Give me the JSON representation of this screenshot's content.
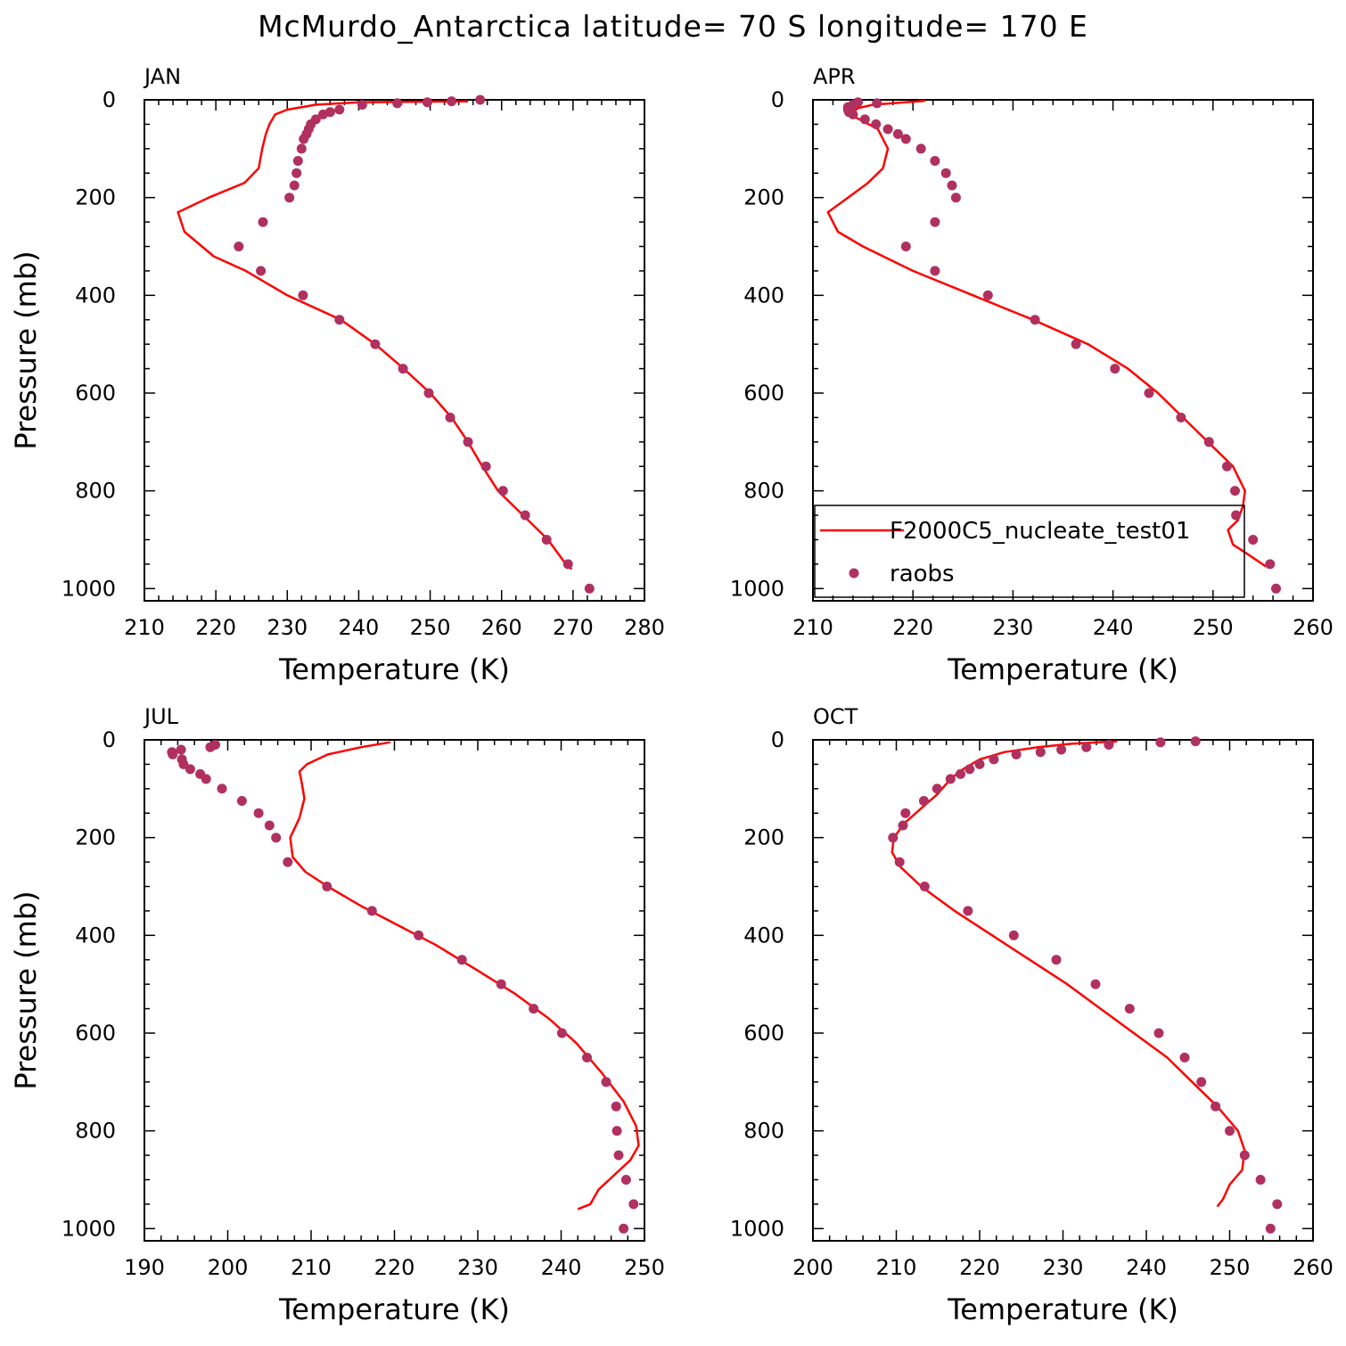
{
  "figure": {
    "title": "McMurdo_Antarctica  latitude= 70 S longitude= 170 E"
  },
  "colors": {
    "model": "#ff0000",
    "obs": "#b03060",
    "axis": "#000000"
  },
  "legend": {
    "panel_index": 1,
    "placement": "lower-middle",
    "entries": [
      {
        "label": "F2000C5_nucleate_test01",
        "style": "line",
        "color": "#ff0000"
      },
      {
        "label": "raobs",
        "style": "marker",
        "color": "#b03060"
      }
    ]
  },
  "chart_data": [
    {
      "type": "line",
      "panel": "JAN",
      "xlabel": "Temperature (K)",
      "ylabel": "Pressure (mb)",
      "xlim": [
        210,
        280
      ],
      "ylim": [
        1025,
        0
      ],
      "xticks": [
        210,
        220,
        230,
        240,
        250,
        260,
        270,
        280
      ],
      "yticks": [
        0,
        200,
        400,
        600,
        800,
        1000
      ],
      "series": [
        {
          "name": "F2000C5_nucleate_test01",
          "kind": "line",
          "points": [
            [
              255.3,
              3
            ],
            [
              240,
              5
            ],
            [
              234,
              10
            ],
            [
              230,
              20
            ],
            [
              228.3,
              30
            ],
            [
              227.5,
              50
            ],
            [
              227,
              70
            ],
            [
              226.5,
              100
            ],
            [
              226,
              140
            ],
            [
              224,
              170
            ],
            [
              219,
              200
            ],
            [
              214.7,
              230
            ],
            [
              215.6,
              270
            ],
            [
              219.7,
              320
            ],
            [
              224.2,
              350
            ],
            [
              230,
              400
            ],
            [
              237.5,
              450
            ],
            [
              242.3,
              500
            ],
            [
              246.3,
              550
            ],
            [
              250,
              600
            ],
            [
              253,
              650
            ],
            [
              255.3,
              700
            ],
            [
              257.3,
              750
            ],
            [
              259.5,
              800
            ],
            [
              263,
              850
            ],
            [
              266.5,
              900
            ],
            [
              269,
              950
            ],
            [
              269.8,
              960
            ]
          ]
        },
        {
          "name": "raobs",
          "kind": "marker",
          "points": [
            [
              257,
              0
            ],
            [
              253,
              3
            ],
            [
              249.6,
              5
            ],
            [
              245.4,
              7
            ],
            [
              240.5,
              10
            ],
            [
              237.3,
              20
            ],
            [
              236,
              25
            ],
            [
              235,
              30
            ],
            [
              234,
              40
            ],
            [
              233.3,
              50
            ],
            [
              233,
              60
            ],
            [
              232.7,
              70
            ],
            [
              232.3,
              80
            ],
            [
              232,
              100
            ],
            [
              231.5,
              125
            ],
            [
              231.3,
              150
            ],
            [
              231,
              175
            ],
            [
              230.3,
              200
            ],
            [
              226.6,
              250
            ],
            [
              223.2,
              300
            ],
            [
              226.3,
              350
            ],
            [
              232.2,
              400
            ],
            [
              237.3,
              450
            ],
            [
              242.3,
              500
            ],
            [
              246.2,
              550
            ],
            [
              249.8,
              600
            ],
            [
              252.8,
              650
            ],
            [
              255.3,
              700
            ],
            [
              257.8,
              750
            ],
            [
              260.2,
              800
            ],
            [
              263.3,
              850
            ],
            [
              266.3,
              900
            ],
            [
              269.3,
              950
            ],
            [
              272.3,
              1000
            ]
          ]
        }
      ]
    },
    {
      "type": "line",
      "panel": "APR",
      "xlabel": "Temperature (K)",
      "ylabel": "",
      "xlim": [
        210,
        260
      ],
      "ylim": [
        1025,
        0
      ],
      "xticks": [
        210,
        220,
        230,
        240,
        250,
        260
      ],
      "yticks": [
        0,
        200,
        400,
        600,
        800,
        1000
      ],
      "series": [
        {
          "name": "F2000C5_nucleate_test01",
          "kind": "line",
          "points": [
            [
              221.2,
              2
            ],
            [
              216,
              10
            ],
            [
              214.5,
              17
            ],
            [
              214,
              25
            ],
            [
              214.2,
              35
            ],
            [
              216.5,
              60
            ],
            [
              217.5,
              100
            ],
            [
              217,
              140
            ],
            [
              215.5,
              170
            ],
            [
              213.5,
              200
            ],
            [
              211.5,
              230
            ],
            [
              212.5,
              270
            ],
            [
              215,
              300
            ],
            [
              220,
              350
            ],
            [
              226,
              400
            ],
            [
              232,
              450
            ],
            [
              237.5,
              500
            ],
            [
              241.5,
              550
            ],
            [
              244.5,
              600
            ],
            [
              247,
              650
            ],
            [
              249.5,
              700
            ],
            [
              252,
              750
            ],
            [
              253.2,
              800
            ],
            [
              253,
              830
            ],
            [
              252.5,
              860
            ],
            [
              251.5,
              880
            ],
            [
              252,
              910
            ],
            [
              253.5,
              930
            ],
            [
              255.3,
              955
            ]
          ]
        },
        {
          "name": "raobs",
          "kind": "marker",
          "points": [
            [
              214.5,
              5
            ],
            [
              216.4,
              7
            ],
            [
              214,
              10
            ],
            [
              213.5,
              15
            ],
            [
              213.5,
              20
            ],
            [
              213.6,
              25
            ],
            [
              214,
              30
            ],
            [
              215.2,
              40
            ],
            [
              216.3,
              50
            ],
            [
              217.5,
              60
            ],
            [
              218.5,
              70
            ],
            [
              219.3,
              80
            ],
            [
              220.8,
              100
            ],
            [
              222.2,
              125
            ],
            [
              223.3,
              150
            ],
            [
              223.9,
              175
            ],
            [
              224.3,
              200
            ],
            [
              222.2,
              250
            ],
            [
              219.3,
              300
            ],
            [
              222.2,
              350
            ],
            [
              227.5,
              400
            ],
            [
              232.2,
              450
            ],
            [
              236.3,
              500
            ],
            [
              240.2,
              550
            ],
            [
              243.6,
              600
            ],
            [
              246.8,
              650
            ],
            [
              249.6,
              700
            ],
            [
              251.4,
              750
            ],
            [
              252.2,
              800
            ],
            [
              252.3,
              850
            ],
            [
              254,
              900
            ],
            [
              255.7,
              950
            ],
            [
              256.3,
              1000
            ]
          ]
        }
      ]
    },
    {
      "type": "line",
      "panel": "JUL",
      "xlabel": "Temperature (K)",
      "ylabel": "Pressure (mb)",
      "xlim": [
        190,
        250
      ],
      "ylim": [
        1025,
        0
      ],
      "xticks": [
        190,
        200,
        210,
        220,
        230,
        240,
        250
      ],
      "yticks": [
        0,
        200,
        400,
        600,
        800,
        1000
      ],
      "series": [
        {
          "name": "F2000C5_nucleate_test01",
          "kind": "line",
          "points": [
            [
              219.5,
              5
            ],
            [
              216,
              15
            ],
            [
              212,
              30
            ],
            [
              209.5,
              50
            ],
            [
              208.6,
              65
            ],
            [
              208.8,
              80
            ],
            [
              209.2,
              120
            ],
            [
              208.6,
              160
            ],
            [
              207.5,
              200
            ],
            [
              207.8,
              240
            ],
            [
              209.3,
              270
            ],
            [
              212,
              300
            ],
            [
              216,
              340
            ],
            [
              220.5,
              380
            ],
            [
              225,
              420
            ],
            [
              229.8,
              470
            ],
            [
              234.5,
              520
            ],
            [
              238.5,
              570
            ],
            [
              241.8,
              620
            ],
            [
              244.8,
              680
            ],
            [
              247.5,
              740
            ],
            [
              249,
              790
            ],
            [
              249.3,
              830
            ],
            [
              248.3,
              860
            ],
            [
              244.5,
              920
            ],
            [
              243.5,
              950
            ],
            [
              242,
              960
            ]
          ]
        },
        {
          "name": "raobs",
          "kind": "marker",
          "points": [
            [
              198.5,
              10
            ],
            [
              197.9,
              15
            ],
            [
              194.4,
              20
            ],
            [
              193.3,
              25
            ],
            [
              193.4,
              30
            ],
            [
              194.5,
              40
            ],
            [
              194.7,
              50
            ],
            [
              195.5,
              60
            ],
            [
              196.7,
              70
            ],
            [
              197.4,
              80
            ],
            [
              199.3,
              100
            ],
            [
              201.7,
              125
            ],
            [
              203.7,
              150
            ],
            [
              205,
              175
            ],
            [
              205.8,
              200
            ],
            [
              207.2,
              250
            ],
            [
              211.9,
              300
            ],
            [
              217.3,
              350
            ],
            [
              222.9,
              400
            ],
            [
              228.1,
              450
            ],
            [
              232.8,
              500
            ],
            [
              236.7,
              550
            ],
            [
              240.1,
              600
            ],
            [
              243.1,
              650
            ],
            [
              245.4,
              700
            ],
            [
              246.6,
              750
            ],
            [
              246.7,
              800
            ],
            [
              246.9,
              850
            ],
            [
              247.8,
              900
            ],
            [
              248.7,
              950
            ],
            [
              247.5,
              1000
            ]
          ]
        }
      ]
    },
    {
      "type": "line",
      "panel": "OCT",
      "xlabel": "Temperature (K)",
      "ylabel": "",
      "xlim": [
        200,
        260
      ],
      "ylim": [
        1025,
        0
      ],
      "xticks": [
        200,
        210,
        220,
        230,
        240,
        250,
        260
      ],
      "yticks": [
        0,
        200,
        400,
        600,
        800,
        1000
      ],
      "series": [
        {
          "name": "F2000C5_nucleate_test01",
          "kind": "line",
          "points": [
            [
              236.5,
              3
            ],
            [
              231,
              8
            ],
            [
              227,
              15
            ],
            [
              223,
              25
            ],
            [
              220,
              40
            ],
            [
              218,
              60
            ],
            [
              216.5,
              80
            ],
            [
              215,
              110
            ],
            [
              213,
              140
            ],
            [
              211,
              170
            ],
            [
              209.7,
              200
            ],
            [
              209.5,
              230
            ],
            [
              210.5,
              260
            ],
            [
              213,
              300
            ],
            [
              217,
              350
            ],
            [
              221.5,
              400
            ],
            [
              226,
              450
            ],
            [
              230.5,
              500
            ],
            [
              234.5,
              550
            ],
            [
              238.5,
              600
            ],
            [
              242.5,
              650
            ],
            [
              245.5,
              700
            ],
            [
              248.5,
              750
            ],
            [
              251,
              800
            ],
            [
              251.8,
              840
            ],
            [
              251.5,
              880
            ],
            [
              250,
              910
            ],
            [
              249.2,
              940
            ],
            [
              248.5,
              955
            ]
          ]
        },
        {
          "name": "raobs",
          "kind": "marker",
          "points": [
            [
              245.9,
              3
            ],
            [
              241.7,
              5
            ],
            [
              235.5,
              10
            ],
            [
              232.8,
              15
            ],
            [
              229.8,
              20
            ],
            [
              227.3,
              25
            ],
            [
              224.4,
              30
            ],
            [
              221.7,
              40
            ],
            [
              220,
              50
            ],
            [
              218.8,
              60
            ],
            [
              217.7,
              70
            ],
            [
              216.5,
              80
            ],
            [
              214.9,
              100
            ],
            [
              213.3,
              125
            ],
            [
              211.1,
              150
            ],
            [
              210.8,
              175
            ],
            [
              209.6,
              200
            ],
            [
              210.4,
              250
            ],
            [
              213.4,
              300
            ],
            [
              218.6,
              350
            ],
            [
              224.1,
              400
            ],
            [
              229.2,
              450
            ],
            [
              233.9,
              500
            ],
            [
              238,
              550
            ],
            [
              241.5,
              600
            ],
            [
              244.6,
              650
            ],
            [
              246.6,
              700
            ],
            [
              248.3,
              750
            ],
            [
              250,
              800
            ],
            [
              251.8,
              850
            ],
            [
              253.7,
              900
            ],
            [
              255.7,
              950
            ],
            [
              254.9,
              1000
            ]
          ]
        }
      ]
    }
  ]
}
